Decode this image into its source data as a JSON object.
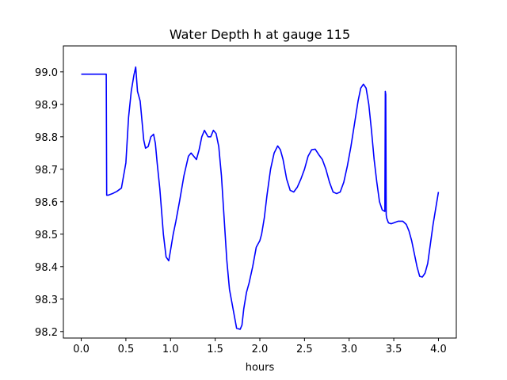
{
  "chart_data": {
    "type": "line",
    "title": "Water Depth h at gauge 115",
    "xlabel": "hours",
    "ylabel": "",
    "xlim": [
      -0.2,
      4.2
    ],
    "ylim": [
      98.18,
      99.08
    ],
    "xticks": [
      0.0,
      0.5,
      1.0,
      1.5,
      2.0,
      2.5,
      3.0,
      3.5,
      4.0
    ],
    "xtick_labels": [
      "0.0",
      "0.5",
      "1.0",
      "1.5",
      "2.0",
      "2.5",
      "3.0",
      "3.5",
      "4.0"
    ],
    "yticks": [
      98.2,
      98.3,
      98.4,
      98.5,
      98.6,
      98.7,
      98.8,
      98.9,
      99.0
    ],
    "ytick_labels": [
      "98.2",
      "98.3",
      "98.4",
      "98.5",
      "98.6",
      "98.7",
      "98.8",
      "98.9",
      "99.0"
    ],
    "grid": false,
    "series": [
      {
        "color": "#0000ff",
        "x": [
          0.0,
          0.1,
          0.2,
          0.28,
          0.285,
          0.3,
          0.35,
          0.4,
          0.45,
          0.5,
          0.53,
          0.56,
          0.59,
          0.61,
          0.63,
          0.66,
          0.68,
          0.7,
          0.72,
          0.75,
          0.78,
          0.81,
          0.83,
          0.85,
          0.88,
          0.92,
          0.95,
          0.98,
          1.0,
          1.03,
          1.06,
          1.1,
          1.15,
          1.2,
          1.23,
          1.26,
          1.29,
          1.32,
          1.35,
          1.38,
          1.4,
          1.42,
          1.45,
          1.48,
          1.51,
          1.54,
          1.57,
          1.6,
          1.63,
          1.66,
          1.7,
          1.74,
          1.78,
          1.8,
          1.82,
          1.85,
          1.88,
          1.92,
          1.96,
          2.0,
          2.02,
          2.05,
          2.08,
          2.12,
          2.16,
          2.2,
          2.23,
          2.26,
          2.3,
          2.34,
          2.38,
          2.42,
          2.46,
          2.5,
          2.54,
          2.58,
          2.62,
          2.66,
          2.7,
          2.74,
          2.78,
          2.82,
          2.86,
          2.9,
          2.94,
          2.98,
          3.02,
          3.06,
          3.1,
          3.13,
          3.16,
          3.19,
          3.22,
          3.25,
          3.28,
          3.31,
          3.34,
          3.37,
          3.4,
          3.405,
          3.41,
          3.415,
          3.42,
          3.44,
          3.47,
          3.5,
          3.55,
          3.6,
          3.64,
          3.67,
          3.7,
          3.73,
          3.76,
          3.79,
          3.82,
          3.85,
          3.88,
          3.91,
          3.94,
          3.97,
          4.0
        ],
        "y": [
          98.993,
          98.993,
          98.993,
          98.993,
          98.62,
          98.62,
          98.625,
          98.632,
          98.642,
          98.72,
          98.86,
          98.94,
          98.99,
          99.015,
          98.94,
          98.91,
          98.85,
          98.79,
          98.765,
          98.77,
          98.8,
          98.808,
          98.78,
          98.72,
          98.64,
          98.5,
          98.43,
          98.418,
          98.45,
          98.5,
          98.54,
          98.6,
          98.68,
          98.74,
          98.75,
          98.74,
          98.73,
          98.76,
          98.8,
          98.82,
          98.81,
          98.8,
          98.8,
          98.82,
          98.81,
          98.77,
          98.68,
          98.55,
          98.42,
          98.33,
          98.27,
          98.21,
          98.207,
          98.22,
          98.27,
          98.32,
          98.35,
          98.4,
          98.46,
          98.48,
          98.5,
          98.55,
          98.62,
          98.7,
          98.75,
          98.772,
          98.76,
          98.73,
          98.67,
          98.635,
          98.63,
          98.645,
          98.67,
          98.7,
          98.74,
          98.76,
          98.762,
          98.745,
          98.73,
          98.7,
          98.66,
          98.63,
          98.625,
          98.63,
          98.66,
          98.71,
          98.77,
          98.84,
          98.91,
          98.95,
          98.962,
          98.95,
          98.9,
          98.82,
          98.73,
          98.66,
          98.6,
          98.575,
          98.57,
          98.94,
          98.93,
          98.56,
          98.55,
          98.535,
          98.532,
          98.535,
          98.54,
          98.54,
          98.53,
          98.51,
          98.48,
          98.44,
          98.4,
          98.37,
          98.368,
          98.38,
          98.41,
          98.47,
          98.53,
          98.58,
          98.63
        ]
      }
    ]
  }
}
